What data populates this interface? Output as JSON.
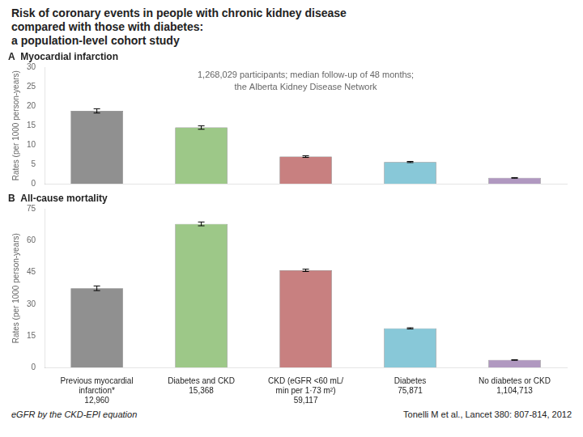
{
  "chart_data": [
    {
      "type": "bar",
      "title": [
        "Risk of coronary events in people with chronic kidney disease",
        "compared with those with diabetes:",
        "a population-level cohort study"
      ],
      "subtitle": "A  Myocardial infarction",
      "ylabel": "Rates (per 1000 person-years)",
      "annotation": "1,268,029 participants; median follow-up of 48 months;\nthe Alberta Kidney Disease Network",
      "categories": [
        null,
        null,
        null,
        null,
        null
      ],
      "values": [
        18.8,
        14.5,
        7.0,
        5.6,
        1.5
      ],
      "errors": [
        0.55,
        0.45,
        0.22,
        0.15,
        0.08
      ],
      "colors": [
        "#909090",
        "#9DC888",
        "#C88080",
        "#88C8D8",
        "#B098C0"
      ],
      "ylim": [
        0,
        30
      ],
      "yticks": [
        0,
        5,
        10,
        15,
        20,
        25,
        30
      ],
      "grid": false,
      "tick_labels": "y"
    },
    {
      "type": "bar",
      "subtitle": "B  All-cause mortality",
      "ylabel": "Rates (per 1000 person-years)",
      "categories": [
        "Previous myocardial\ninfarction*",
        "Diabetes and CKD",
        "CKD (eGFR <60 mL/\nmin per 1·73 m²)",
        "Diabetes",
        "No diabetes or CKD"
      ],
      "sample_sizes": [
        "12,960",
        "15,368",
        "59,117",
        "75,871",
        "1,104,713"
      ],
      "values": [
        37.5,
        68.0,
        46.0,
        18.5,
        3.5
      ],
      "errors": [
        1.1,
        0.9,
        0.55,
        0.28,
        0.12
      ],
      "colors": [
        "#909090",
        "#9DC888",
        "#C88080",
        "#88C8D8",
        "#B098C0"
      ],
      "ylim": [
        0,
        75
      ],
      "yticks": [
        0,
        15,
        30,
        45,
        60,
        75
      ],
      "grid": false,
      "footer": [
        "eGFR by the CKD-EPI equation",
        "Tonelli M et al., Lancet 380: 807-814, 2012"
      ]
    }
  ]
}
